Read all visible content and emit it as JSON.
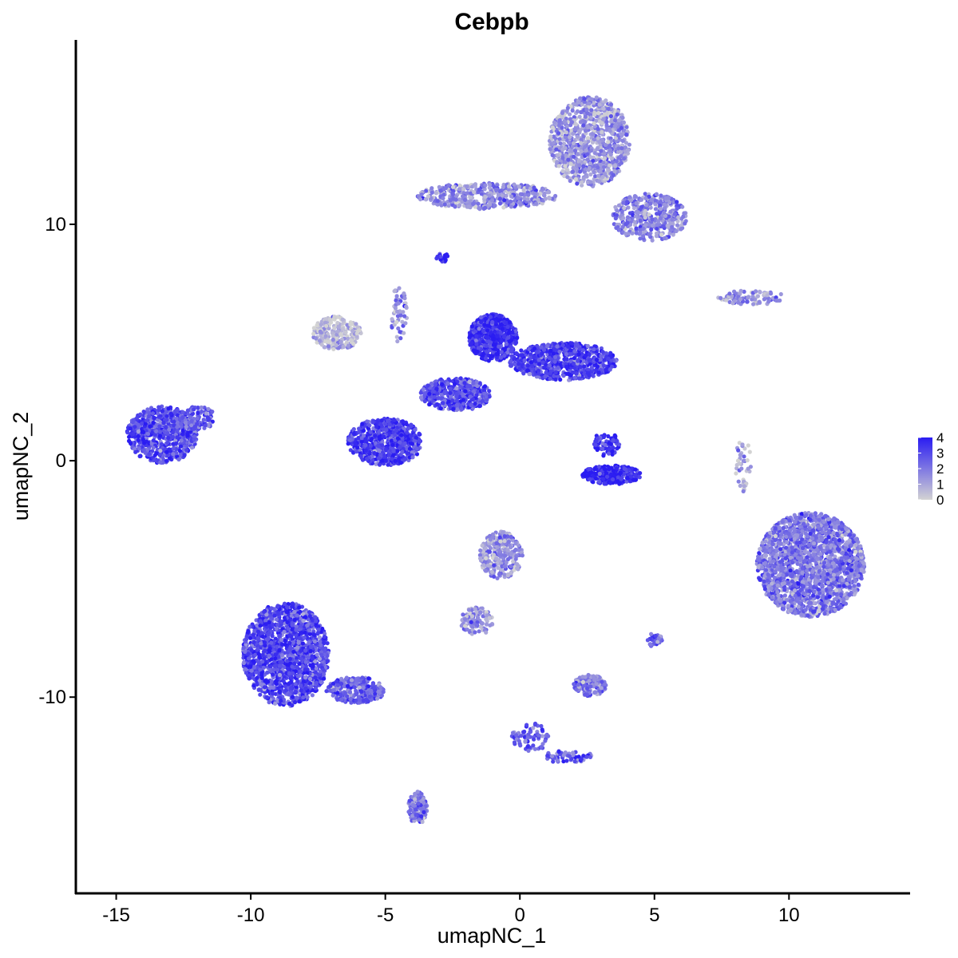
{
  "chart_data": {
    "type": "scatter",
    "title": "Cebpb",
    "xlabel": "umapNC_1",
    "ylabel": "umapNC_2",
    "xlim": [
      -16.5,
      14.5
    ],
    "ylim": [
      -18.3,
      17.8
    ],
    "xticks": [
      -15,
      -10,
      -5,
      0,
      5,
      10
    ],
    "xtick_labels": [
      "-15",
      "-10",
      "-5",
      "0",
      "5",
      "10"
    ],
    "yticks": [
      -10,
      0,
      10
    ],
    "ytick_labels": [
      "-10",
      "0",
      "10"
    ],
    "color_scale": {
      "low": "#d3d3d3",
      "high": "#2a1cf2",
      "min": 0,
      "max": 4
    },
    "legend": {
      "position": "right",
      "values": [
        4,
        3,
        2,
        1,
        0
      ],
      "labels": [
        "4",
        "3",
        "2",
        "1",
        "0"
      ]
    },
    "grid": false,
    "clusters": [
      {
        "cx": 2.6,
        "cy": 13.5,
        "rx": 1.5,
        "ry": 1.9,
        "n": 900,
        "expr": 1.3
      },
      {
        "cx": -1.2,
        "cy": 11.2,
        "rx": 2.6,
        "ry": 0.55,
        "n": 450,
        "expr": 1.5
      },
      {
        "cx": 4.8,
        "cy": 10.3,
        "rx": 1.4,
        "ry": 1.0,
        "n": 380,
        "expr": 1.8
      },
      {
        "cx": -2.9,
        "cy": 8.6,
        "rx": 0.25,
        "ry": 0.2,
        "n": 25,
        "expr": 3.6
      },
      {
        "cx": 8.6,
        "cy": 6.9,
        "rx": 1.3,
        "ry": 0.3,
        "n": 90,
        "expr": 1.5
      },
      {
        "cx": -6.8,
        "cy": 5.4,
        "rx": 0.9,
        "ry": 0.7,
        "n": 220,
        "expr": 0.6
      },
      {
        "cx": -4.5,
        "cy": 6.2,
        "rx": 0.3,
        "ry": 1.2,
        "n": 55,
        "expr": 1.5
      },
      {
        "cx": -1.0,
        "cy": 5.2,
        "rx": 0.9,
        "ry": 1.0,
        "n": 650,
        "expr": 3.6
      },
      {
        "cx": 1.6,
        "cy": 4.2,
        "rx": 2.0,
        "ry": 0.8,
        "n": 700,
        "expr": 3.2
      },
      {
        "cx": -2.4,
        "cy": 2.8,
        "rx": 1.3,
        "ry": 0.7,
        "n": 450,
        "expr": 3.0
      },
      {
        "cx": -5.0,
        "cy": 0.8,
        "rx": 1.4,
        "ry": 1.0,
        "n": 650,
        "expr": 3.3
      },
      {
        "cx": -13.3,
        "cy": 1.1,
        "rx": 1.3,
        "ry": 1.2,
        "n": 650,
        "expr": 3.0
      },
      {
        "cx": -12.0,
        "cy": 1.8,
        "rx": 0.7,
        "ry": 0.5,
        "n": 100,
        "expr": 2.6
      },
      {
        "cx": 3.4,
        "cy": -0.6,
        "rx": 1.1,
        "ry": 0.4,
        "n": 280,
        "expr": 3.8
      },
      {
        "cx": 3.2,
        "cy": 0.7,
        "rx": 0.5,
        "ry": 0.5,
        "n": 90,
        "expr": 3.4
      },
      {
        "cx": 8.3,
        "cy": -0.2,
        "rx": 0.3,
        "ry": 1.1,
        "n": 40,
        "expr": 0.9
      },
      {
        "cx": 10.8,
        "cy": -4.4,
        "rx": 2.0,
        "ry": 2.2,
        "n": 1900,
        "expr": 2.0
      },
      {
        "cx": -0.7,
        "cy": -4.0,
        "rx": 0.8,
        "ry": 1.0,
        "n": 300,
        "expr": 1.5
      },
      {
        "cx": -1.6,
        "cy": -6.8,
        "rx": 0.6,
        "ry": 0.6,
        "n": 110,
        "expr": 1.4
      },
      {
        "cx": -8.7,
        "cy": -8.2,
        "rx": 1.6,
        "ry": 2.2,
        "n": 1500,
        "expr": 3.1
      },
      {
        "cx": -6.1,
        "cy": -9.7,
        "rx": 1.1,
        "ry": 0.55,
        "n": 300,
        "expr": 2.5
      },
      {
        "cx": -3.8,
        "cy": -14.7,
        "rx": 0.35,
        "ry": 0.7,
        "n": 120,
        "expr": 1.9
      },
      {
        "cx": 2.6,
        "cy": -9.5,
        "rx": 0.6,
        "ry": 0.45,
        "n": 140,
        "expr": 1.8
      },
      {
        "cx": 0.4,
        "cy": -11.7,
        "rx": 0.7,
        "ry": 0.6,
        "n": 70,
        "expr": 2.5
      },
      {
        "cx": 1.8,
        "cy": -12.5,
        "rx": 0.9,
        "ry": 0.3,
        "n": 60,
        "expr": 2.6
      },
      {
        "cx": 5.0,
        "cy": -7.6,
        "rx": 0.3,
        "ry": 0.3,
        "n": 30,
        "expr": 2.4
      }
    ]
  }
}
